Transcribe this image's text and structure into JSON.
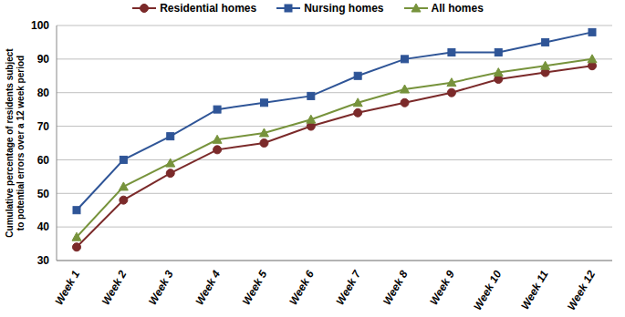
{
  "chart_data": {
    "type": "line",
    "y_label": "Cumulative percentage of residents subject to potential errors over a 12 week period",
    "categories": [
      "Week 1",
      "Week 2",
      "Week 3",
      "Week 4",
      "Week 5",
      "Week 6",
      "Week 7",
      "Week 8",
      "Week 9",
      "Week 10",
      "Week 11",
      "Week 12"
    ],
    "series": [
      {
        "name": "Residential homes",
        "color": "#7b2a2a",
        "marker": "circle",
        "values": [
          34,
          48,
          56,
          63,
          65,
          70,
          74,
          77,
          80,
          84,
          86,
          88
        ]
      },
      {
        "name": "Nursing homes",
        "color": "#2f5597",
        "marker": "square",
        "values": [
          45,
          60,
          67,
          75,
          77,
          79,
          85,
          90,
          92,
          92,
          95,
          98
        ]
      },
      {
        "name": "All homes",
        "color": "#77933c",
        "marker": "triangle",
        "values": [
          37,
          52,
          59,
          66,
          68,
          72,
          77,
          81,
          83,
          86,
          88,
          90
        ]
      }
    ],
    "ylim": [
      30,
      100
    ],
    "yticks": [
      30,
      40,
      50,
      60,
      70,
      80,
      90,
      100
    ],
    "grid": true,
    "legend": "top"
  }
}
